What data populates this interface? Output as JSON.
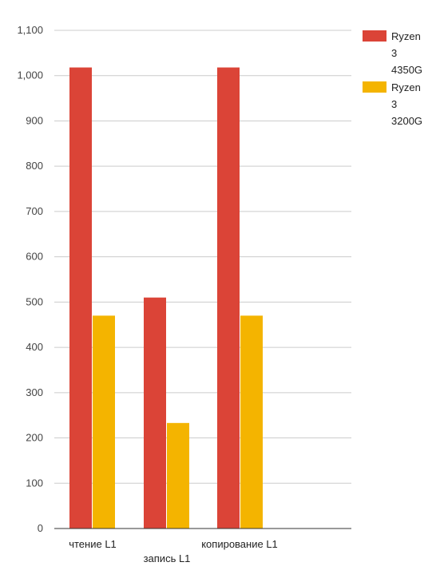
{
  "chart_data": {
    "type": "bar",
    "title": "",
    "xlabel": "",
    "ylabel": "",
    "categories": [
      "чтение L1",
      "запись L1",
      "копирование L1"
    ],
    "series": [
      {
        "name": "Ryzen 3 4350G",
        "values": [
          1018,
          510,
          1018
        ],
        "color": "#db4437"
      },
      {
        "name": "Ryzen 3 3200G",
        "values": [
          470,
          233,
          470
        ],
        "color": "#f4b400"
      }
    ],
    "ylim": [
      0,
      1100
    ],
    "yticks": [
      0,
      100,
      200,
      300,
      400,
      500,
      600,
      700,
      800,
      900,
      1000,
      1100
    ],
    "ytick_labels": [
      "0",
      "100",
      "200",
      "300",
      "400",
      "500",
      "600",
      "700",
      "800",
      "900",
      "1,000",
      "1,100"
    ],
    "grid": true,
    "legend_position": "right-top",
    "legend_lines": [
      [
        "Ryzen",
        "3",
        "4350G"
      ],
      [
        "Ryzen",
        "3",
        "3200G"
      ]
    ]
  }
}
